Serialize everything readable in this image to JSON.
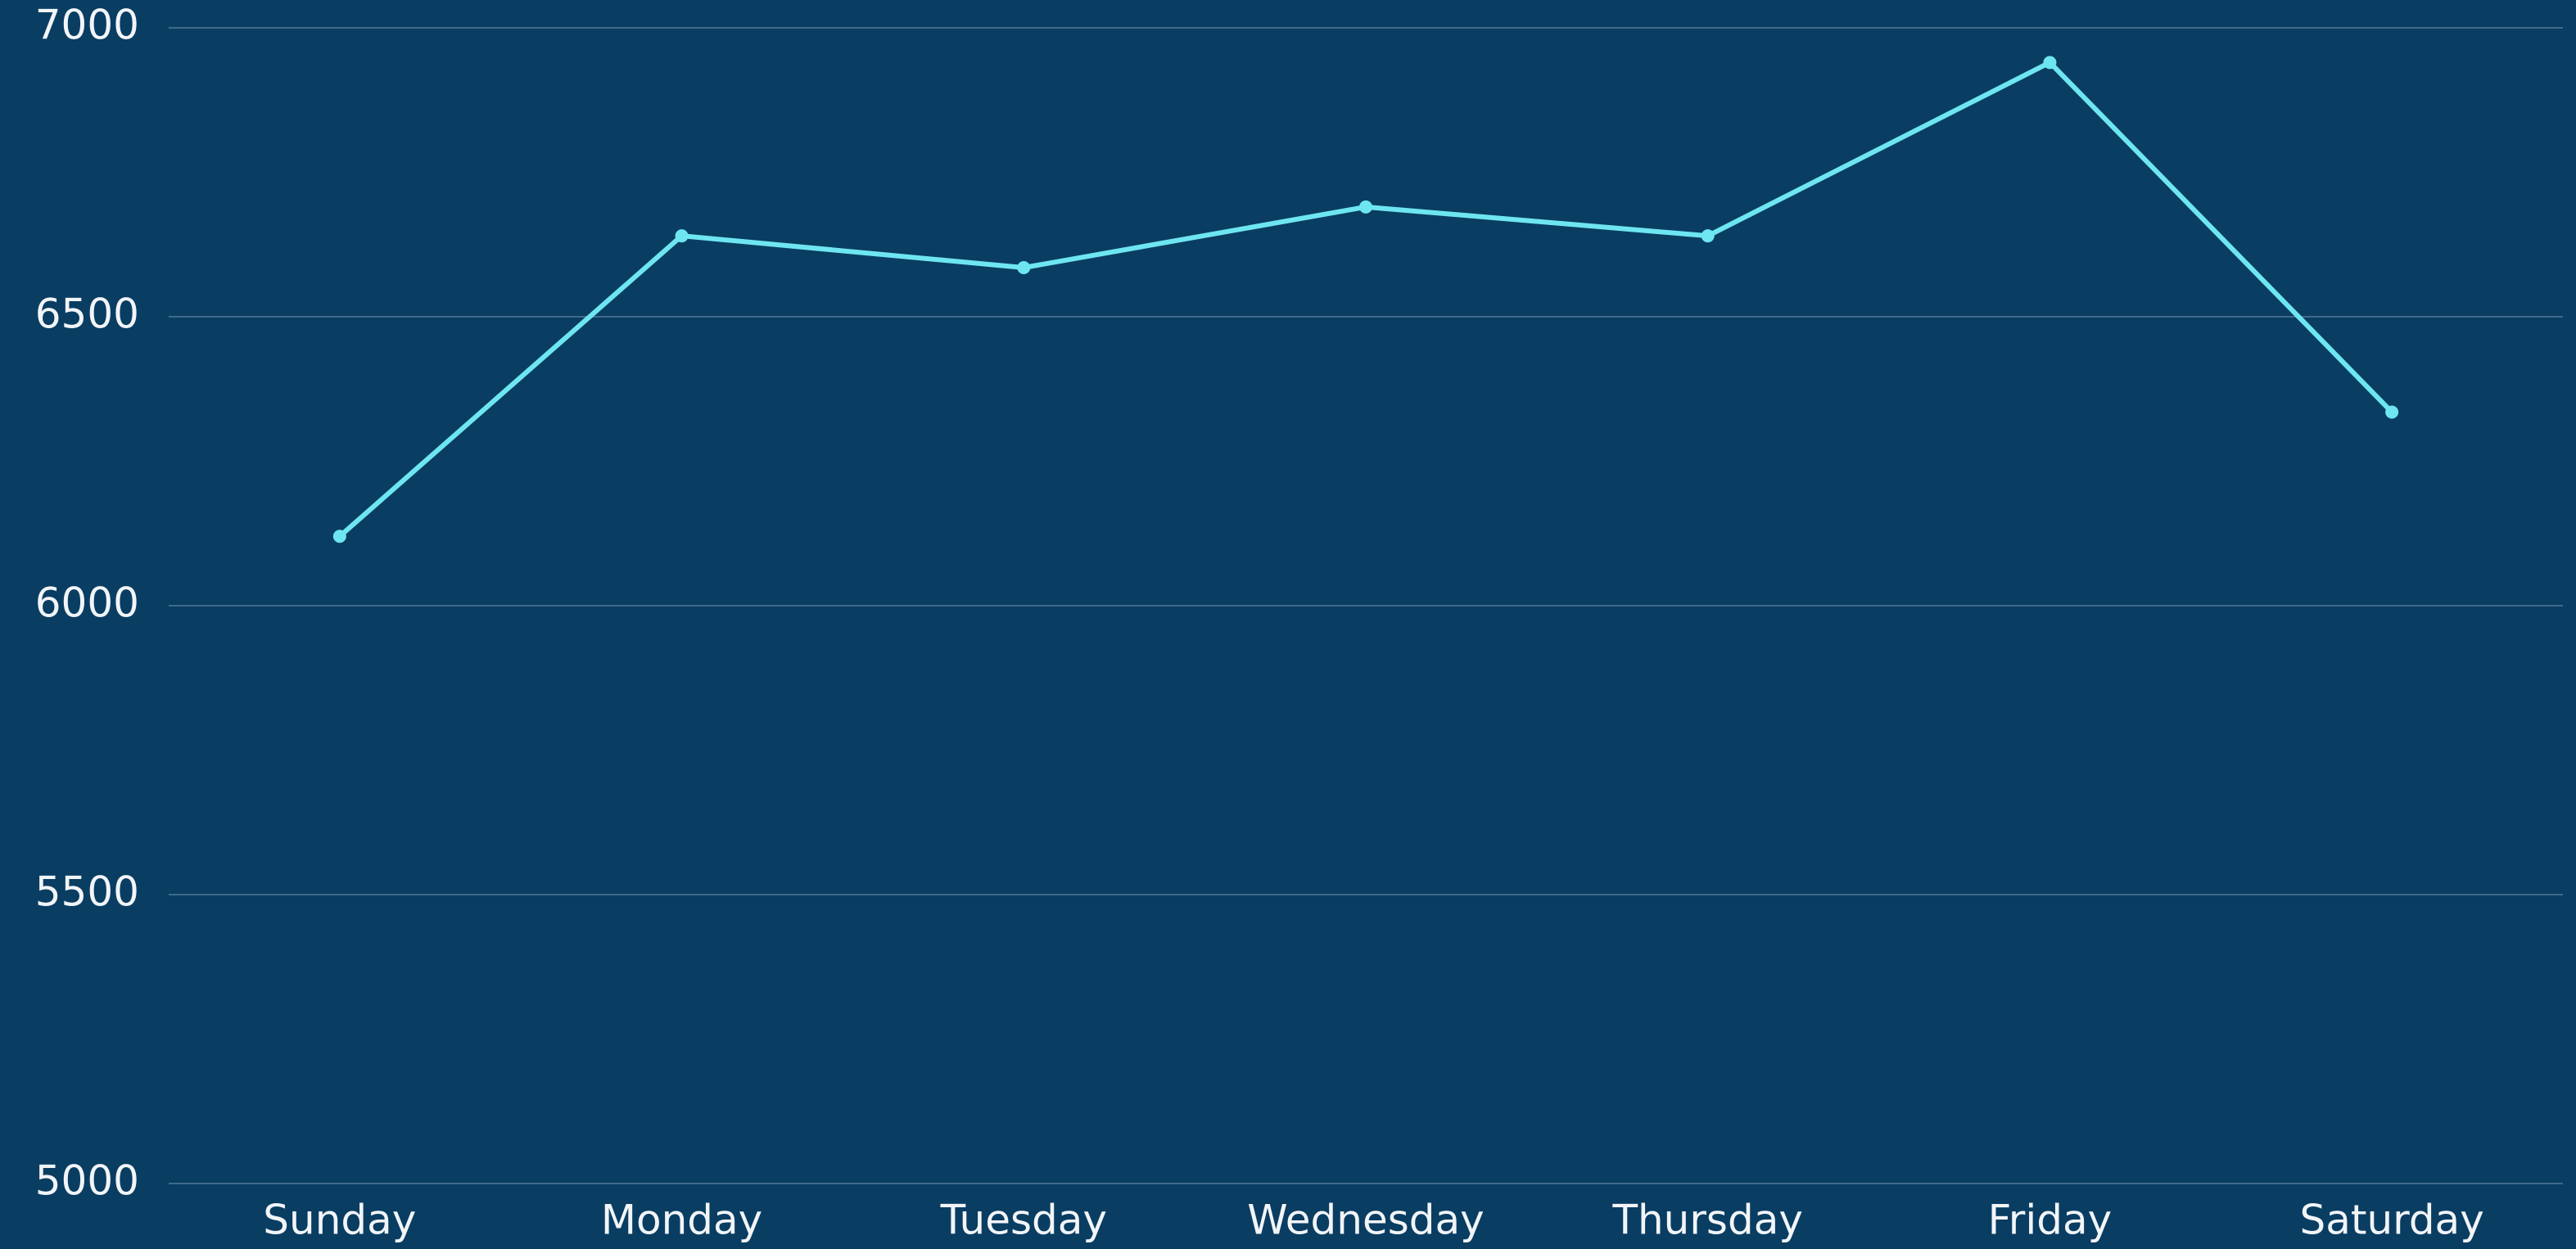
{
  "chart_data": {
    "type": "line",
    "categories": [
      "Sunday",
      "Monday",
      "Tuesday",
      "Wednesday",
      "Thursday",
      "Friday",
      "Saturday"
    ],
    "series": [
      {
        "color": "#6ee6f2",
        "values": [
          6120,
          6640,
          6585,
          6690,
          6640,
          6940,
          6335
        ]
      }
    ],
    "ylim": [
      5000,
      7000
    ],
    "yticks": [
      5000,
      5500,
      6000,
      6500,
      7000
    ],
    "grid": true
  }
}
